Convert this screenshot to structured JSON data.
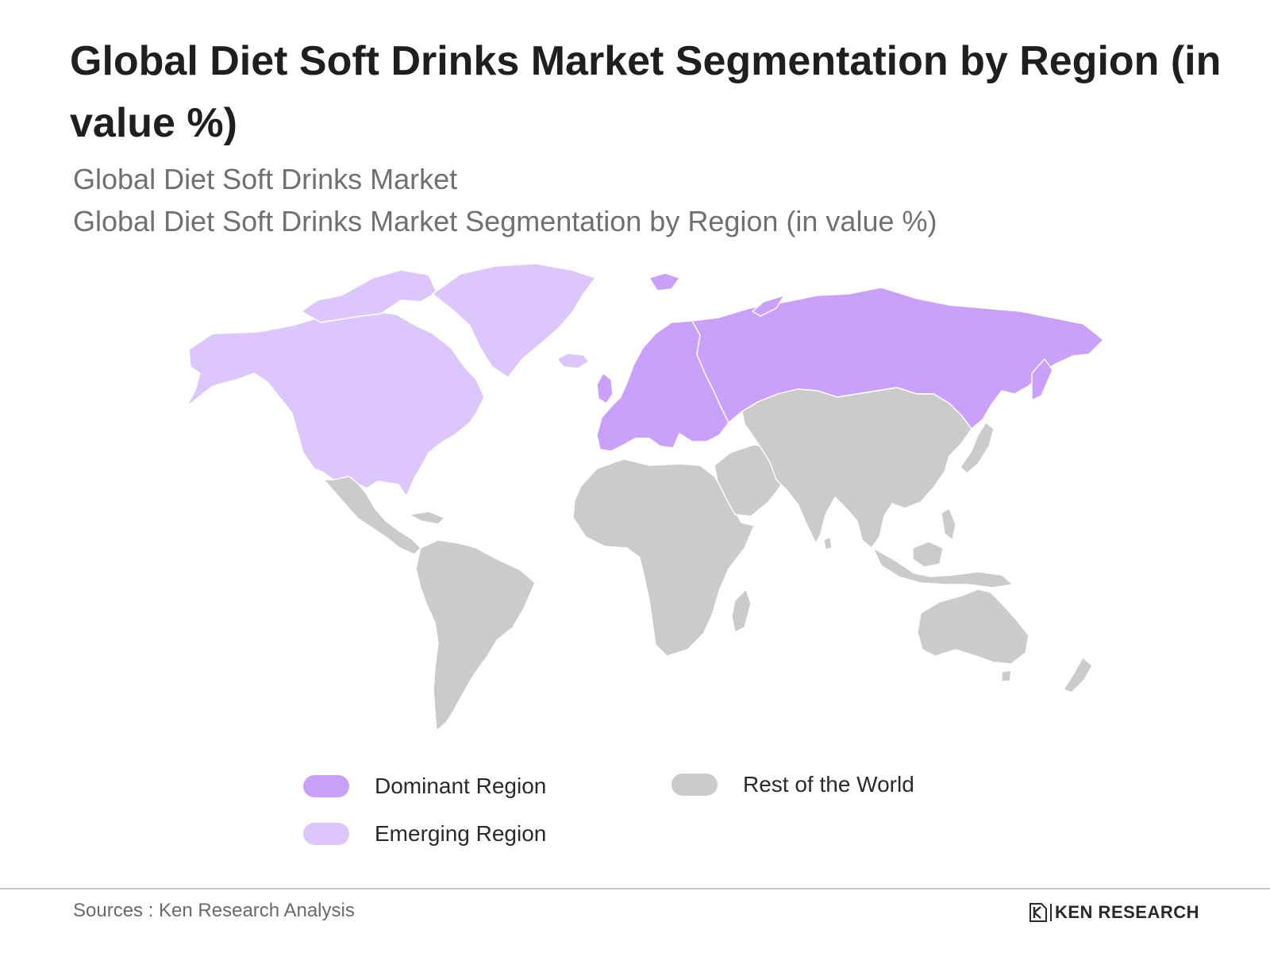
{
  "title": "Global Diet Soft Drinks Market Segmentation by Region (in value %)",
  "subtitle_1": "Global Diet Soft Drinks Market",
  "subtitle_2": "Global Diet Soft Drinks Market Segmentation by Region (in value %)",
  "colors": {
    "dominant": "#c9a0fa",
    "emerging": "#dcc6fc",
    "rest": "#cbcbcb"
  },
  "legend": {
    "dominant_label": "Dominant Region",
    "emerging_label": "Emerging Region",
    "rest_label": "Rest of the World"
  },
  "regions": {
    "dominant": [
      "Europe",
      "Russia"
    ],
    "emerging": [
      "North America",
      "Greenland"
    ],
    "rest": [
      "Latin America",
      "Africa",
      "Middle East",
      "Asia",
      "Oceania"
    ]
  },
  "footer": {
    "sources": "Sources : Ken Research Analysis",
    "brand": "KEN RESEARCH"
  }
}
